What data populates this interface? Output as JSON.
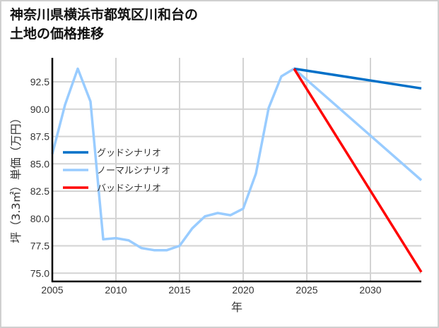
{
  "title_line1": "神奈川県横浜市都筑区川和台の",
  "title_line2": "土地の価格推移",
  "chart_data": {
    "type": "line",
    "title": "神奈川県横浜市都筑区川和台の土地の価格推移",
    "xlabel": "年",
    "ylabel": "坪（3.3㎡）単価（万円）",
    "xlim": [
      2005,
      2034
    ],
    "ylim": [
      74.2,
      94.4
    ],
    "xticks": [
      "2005",
      "2010",
      "2015",
      "2020",
      "2025",
      "2030"
    ],
    "yticks": [
      "75.0",
      "77.5",
      "80.0",
      "82.5",
      "85.0",
      "87.5",
      "90.0",
      "92.5"
    ],
    "grid": true,
    "legend_position": "center-left",
    "series": [
      {
        "name": "グッドシナリオ",
        "color": "#0070c8",
        "x": [
          2024,
          2034
        ],
        "values": [
          93.7,
          91.9
        ]
      },
      {
        "name": "ノーマルシナリオ",
        "color": "#99ccff",
        "x": [
          2005,
          2006,
          2007,
          2008,
          2009,
          2010,
          2011,
          2012,
          2013,
          2014,
          2015,
          2016,
          2017,
          2018,
          2019,
          2020,
          2021,
          2022,
          2023,
          2024,
          2034
        ],
        "values": [
          85.9,
          90.4,
          93.7,
          90.7,
          78.1,
          78.2,
          78.0,
          77.3,
          77.1,
          77.1,
          77.5,
          79.1,
          80.2,
          80.5,
          80.3,
          80.9,
          84.1,
          90.1,
          93.0,
          93.7,
          83.5
        ]
      },
      {
        "name": "バッドシナリオ",
        "color": "#ff0000",
        "x": [
          2024,
          2034
        ],
        "values": [
          93.7,
          75.1
        ]
      }
    ]
  }
}
